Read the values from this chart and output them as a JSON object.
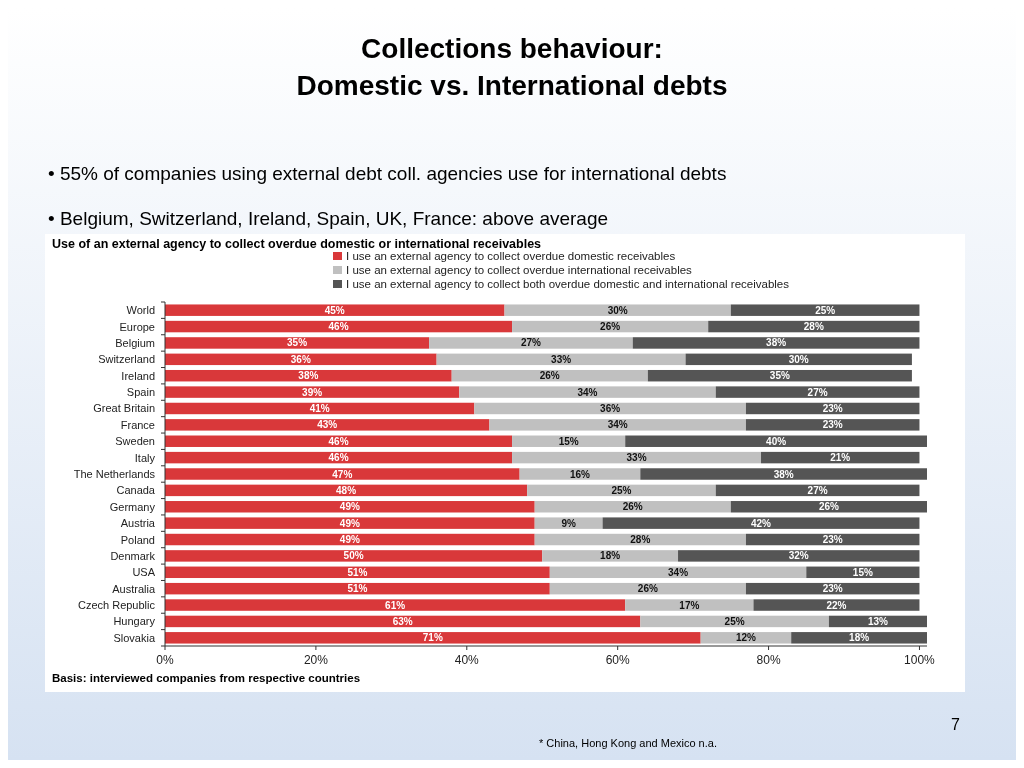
{
  "chart_data": {
    "type": "bar",
    "orientation": "horizontal",
    "stacked": true,
    "title": "Collections behaviour:\nDomestic vs. International debts",
    "subtitle": "Use of an external agency to collect overdue domestic or international receivables",
    "categories": [
      "World",
      "Europe",
      "Belgium",
      "Switzerland",
      "Ireland",
      "Spain",
      "Great Britain",
      "France",
      "Sweden",
      "Italy",
      "The Netherlands",
      "Canada",
      "Germany",
      "Austria",
      "Poland",
      "Denmark",
      "USA",
      "Australia",
      "Czech Republic",
      "Hungary",
      "Slovakia"
    ],
    "series": [
      {
        "name": "I use an external agency to collect overdue domestic receivables",
        "color": "#d9383a",
        "values": [
          45,
          46,
          35,
          36,
          38,
          39,
          41,
          43,
          46,
          46,
          47,
          48,
          49,
          49,
          49,
          50,
          51,
          51,
          61,
          63,
          71
        ],
        "value_labels": [
          "45%",
          "46%",
          "35%",
          "36%",
          "38%",
          "39%",
          "41%",
          "43%",
          "46%",
          "46%",
          "47%",
          "48%",
          "49%",
          "49%",
          "49%",
          "50%",
          "51%",
          "51%",
          "61%",
          "63%",
          "71%"
        ]
      },
      {
        "name": "I use an external agency to collect overdue international receivables",
        "color": "#c0c0c0",
        "values": [
          30,
          26,
          27,
          33,
          26,
          34,
          36,
          34,
          15,
          33,
          16,
          25,
          26,
          9,
          28,
          18,
          34,
          26,
          17,
          25,
          12
        ],
        "value_labels": [
          "30%",
          "26%",
          "27%",
          "33%",
          "26%",
          "34%",
          "36%",
          "34%",
          "15%",
          "33%",
          "16%",
          "25%",
          "26%",
          "9%",
          "28%",
          "18%",
          "34%",
          "26%",
          "17%",
          "25%",
          "12%"
        ]
      },
      {
        "name": "I use an external agency to collect both overdue domestic and international receivables",
        "color": "#555555",
        "values": [
          25,
          28,
          38,
          30,
          35,
          27,
          23,
          23,
          40,
          21,
          38,
          27,
          26,
          42,
          23,
          32,
          15,
          23,
          22,
          13,
          18
        ],
        "value_labels": [
          "25%",
          "28%",
          "38%",
          "30%",
          "35%",
          "27%",
          "23%",
          "23%",
          "40%",
          "21%",
          "38%",
          "27%",
          "26%",
          "42%",
          "23%",
          "32%",
          "15%",
          "23%",
          "22%",
          "13%",
          "18%"
        ]
      }
    ],
    "xlim": [
      0,
      101
    ],
    "xticks": [
      {
        "value": 0,
        "label": "0%"
      },
      {
        "value": 20,
        "label": "20%"
      },
      {
        "value": 40,
        "label": "40%"
      },
      {
        "value": 60,
        "label": "60%"
      },
      {
        "value": 80,
        "label": "80%"
      },
      {
        "value": 100,
        "label": "100%"
      }
    ],
    "legend": "top",
    "annotations": [
      "• 55% of companies using external debt coll. agencies use for international debts",
      "• Belgium, Switzerland, Ireland, Spain, UK, France: above average",
      "Basis: interviewed companies from respective countries",
      "* China, Hong Kong and Mexico n.a.",
      "7"
    ]
  }
}
